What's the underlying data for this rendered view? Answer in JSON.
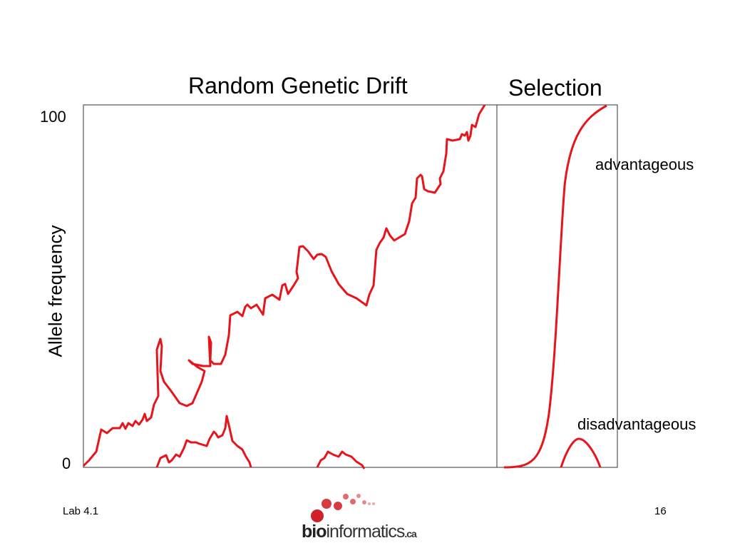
{
  "titles": {
    "drift": "Random Genetic Drift",
    "selection": "Selection"
  },
  "axis": {
    "ylabel": "Allele frequency",
    "tick_top": "100",
    "tick_bottom": "0"
  },
  "labels": {
    "advantageous": "advantageous",
    "disadvantageous": "disadvantageous"
  },
  "footer": {
    "left": "Lab 4.1",
    "page_number": "16"
  },
  "logo": {
    "part1": "bio",
    "part2": "informatics",
    "part3": ".ca"
  },
  "colors": {
    "curve": "#e8141b",
    "axis": "#333333",
    "logo_dots": "#d0202a"
  }
}
